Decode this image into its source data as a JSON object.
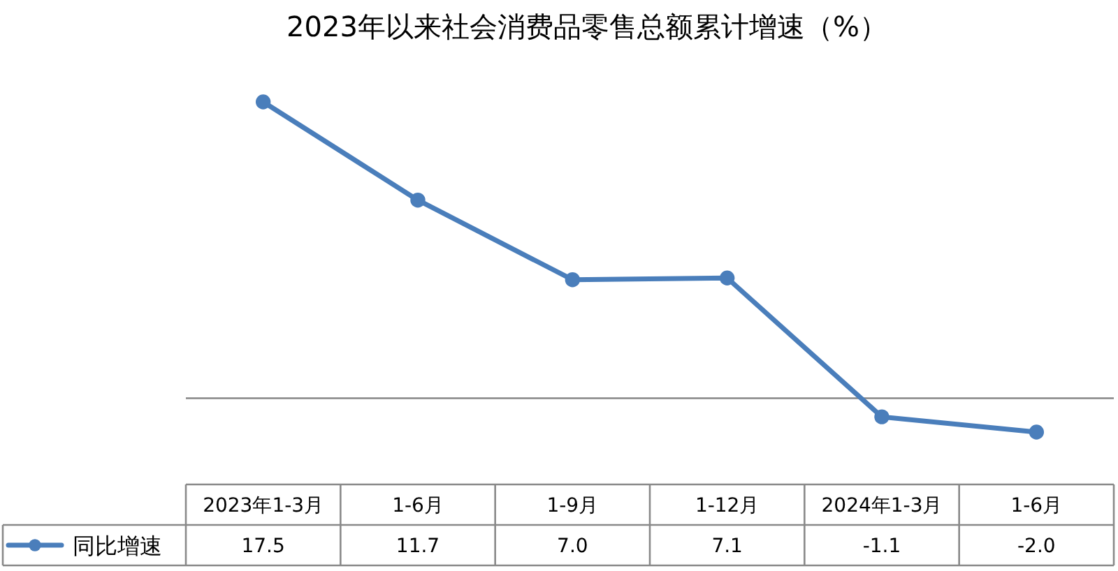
{
  "chart_data": {
    "type": "line",
    "title": "2023年以来社会消费品零售总额累计增速（%）",
    "categories": [
      "2023年1-3月",
      "1-6月",
      "1-9月",
      "1-12月",
      "2024年1-3月",
      "1-6月"
    ],
    "series": [
      {
        "name": "同比增速",
        "color": "#4a7ebb",
        "values": [
          17.5,
          11.7,
          7.0,
          7.1,
          -1.1,
          -2.0
        ],
        "value_labels": [
          "17.5",
          "11.7",
          "7.0",
          "7.1",
          "-1.1",
          "-2.0"
        ]
      }
    ],
    "tick_labels": "x",
    "legend": "bottom left",
    "marker": "circle",
    "line_style": "solid"
  }
}
